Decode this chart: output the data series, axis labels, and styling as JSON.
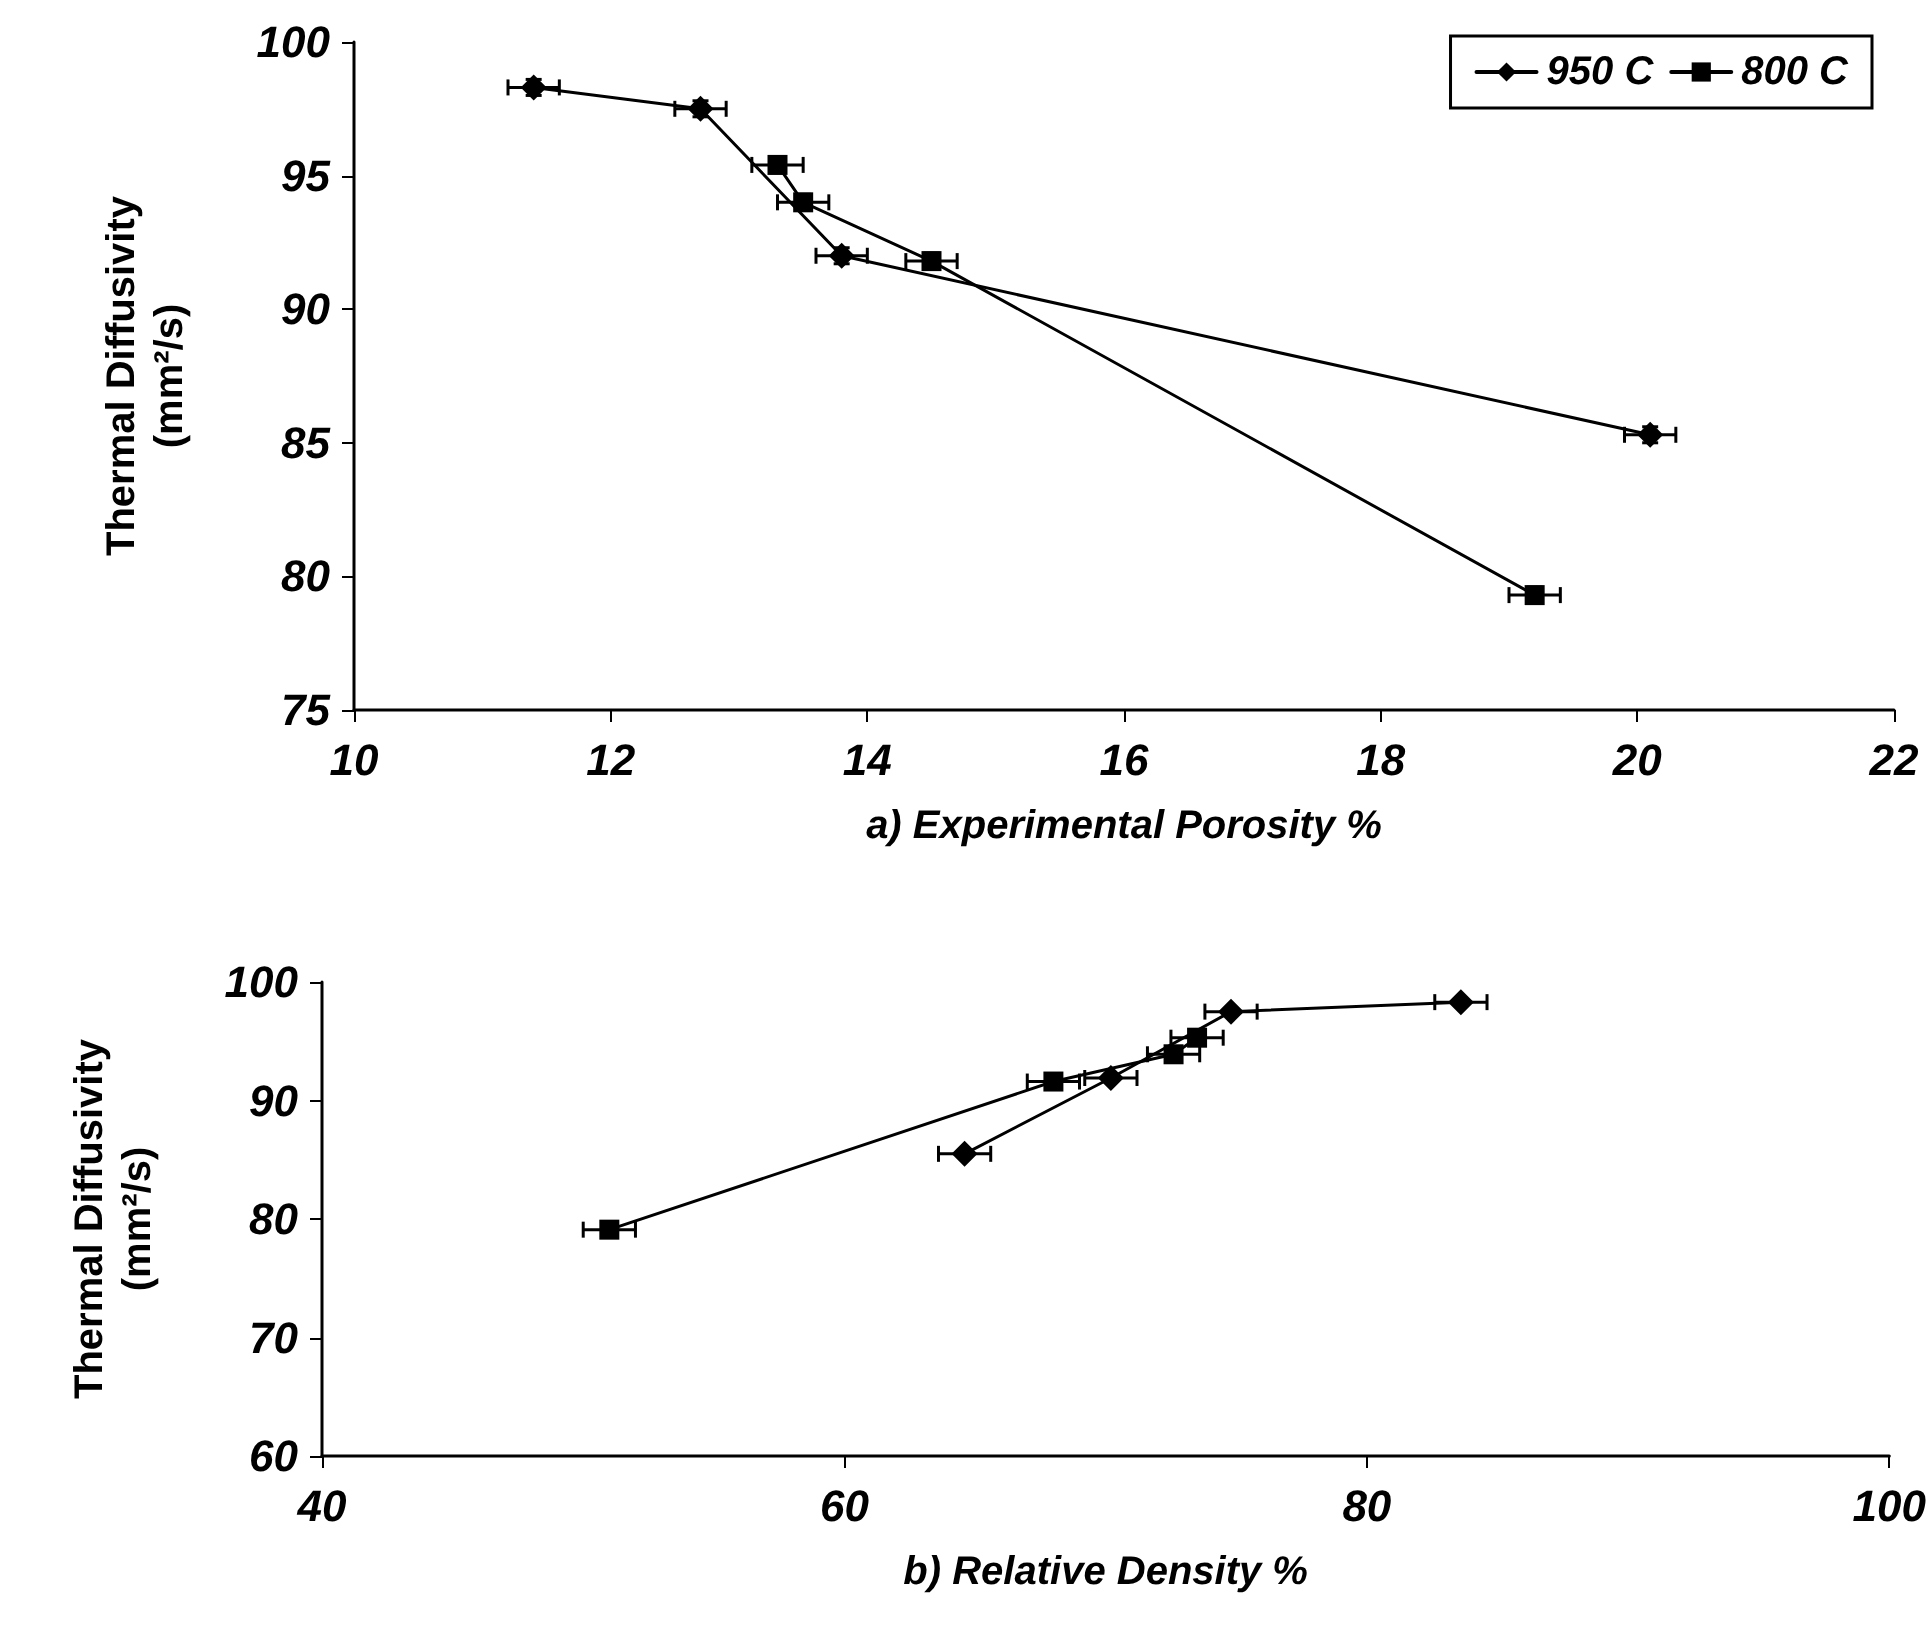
{
  "chart_data": [
    {
      "type": "line",
      "xlabel": "a) Experimental Porosity %",
      "ylabel": "Thermal Diffusivity\n(mm²/s)",
      "xlim": [
        10,
        22
      ],
      "xticks": [
        10,
        12,
        14,
        16,
        18,
        20,
        22
      ],
      "ylim": [
        75,
        100
      ],
      "yticks": [
        75,
        80,
        85,
        90,
        95,
        100
      ],
      "grid": false,
      "legend": "top right",
      "line_style": "solid",
      "series": [
        {
          "name": "950 C",
          "color": "#000000",
          "marker": "diamond",
          "x": [
            11.4,
            12.7,
            13.8,
            20.1
          ],
          "values": [
            98.3,
            97.5,
            92.0,
            85.3
          ],
          "errors": [
            0.3,
            0.3,
            0.3,
            0.3
          ],
          "xerrors": [
            0.2,
            0.2,
            0.2,
            0.2
          ]
        },
        {
          "name": "800 C",
          "color": "#000000",
          "marker": "square",
          "x": [
            13.3,
            13.5,
            14.5,
            19.2
          ],
          "values": [
            95.4,
            94.0,
            91.8,
            79.3
          ],
          "errors": [
            0.3,
            0.3,
            0.3,
            0.3
          ],
          "xerrors": [
            0.2,
            0.2,
            0.2,
            0.2
          ]
        }
      ]
    },
    {
      "type": "line",
      "xlabel": "b) Relative Density %",
      "ylabel": "Thermal Diffusivity\n(mm²/s)",
      "xlim": [
        40,
        100
      ],
      "xticks": [
        40,
        60,
        80,
        100
      ],
      "ylim": [
        60,
        100
      ],
      "yticks": [
        60,
        70,
        80,
        90,
        100
      ],
      "grid": false,
      "legend": false,
      "line_style": "solid",
      "series": [
        {
          "color": "#000000",
          "marker": "diamond",
          "x": [
            83.6,
            74.8,
            70.2,
            64.6
          ],
          "values": [
            98.3,
            97.5,
            91.9,
            85.5
          ],
          "xerrors": [
            1.0,
            1.0,
            1.0,
            1.0
          ]
        },
        {
          "color": "#000000",
          "marker": "square",
          "x": [
            73.5,
            72.6,
            68.0,
            51.0
          ],
          "values": [
            95.3,
            93.9,
            91.6,
            79.1
          ],
          "xerrors": [
            1.0,
            1.0,
            1.0,
            1.0
          ]
        }
      ]
    }
  ]
}
